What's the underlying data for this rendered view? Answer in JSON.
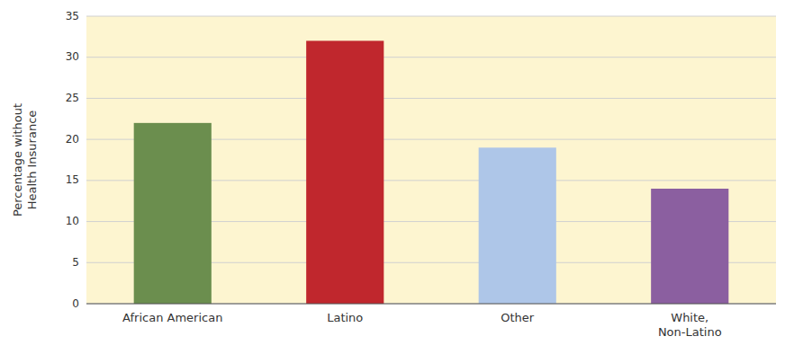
{
  "chart_data": {
    "type": "bar",
    "categories": [
      "African American",
      "Latino",
      "Other",
      "White,\nNon-Latino"
    ],
    "values": [
      22,
      32,
      19,
      14
    ],
    "colors": [
      "#6b8e4e",
      "#c0272d",
      "#aec6e8",
      "#8b5fa0"
    ],
    "ylabel": "Percentage without\nHealth Insurance",
    "ylim": [
      0,
      35
    ],
    "yticks": [
      0,
      5,
      10,
      15,
      20,
      25,
      30,
      35
    ],
    "grid": true
  }
}
